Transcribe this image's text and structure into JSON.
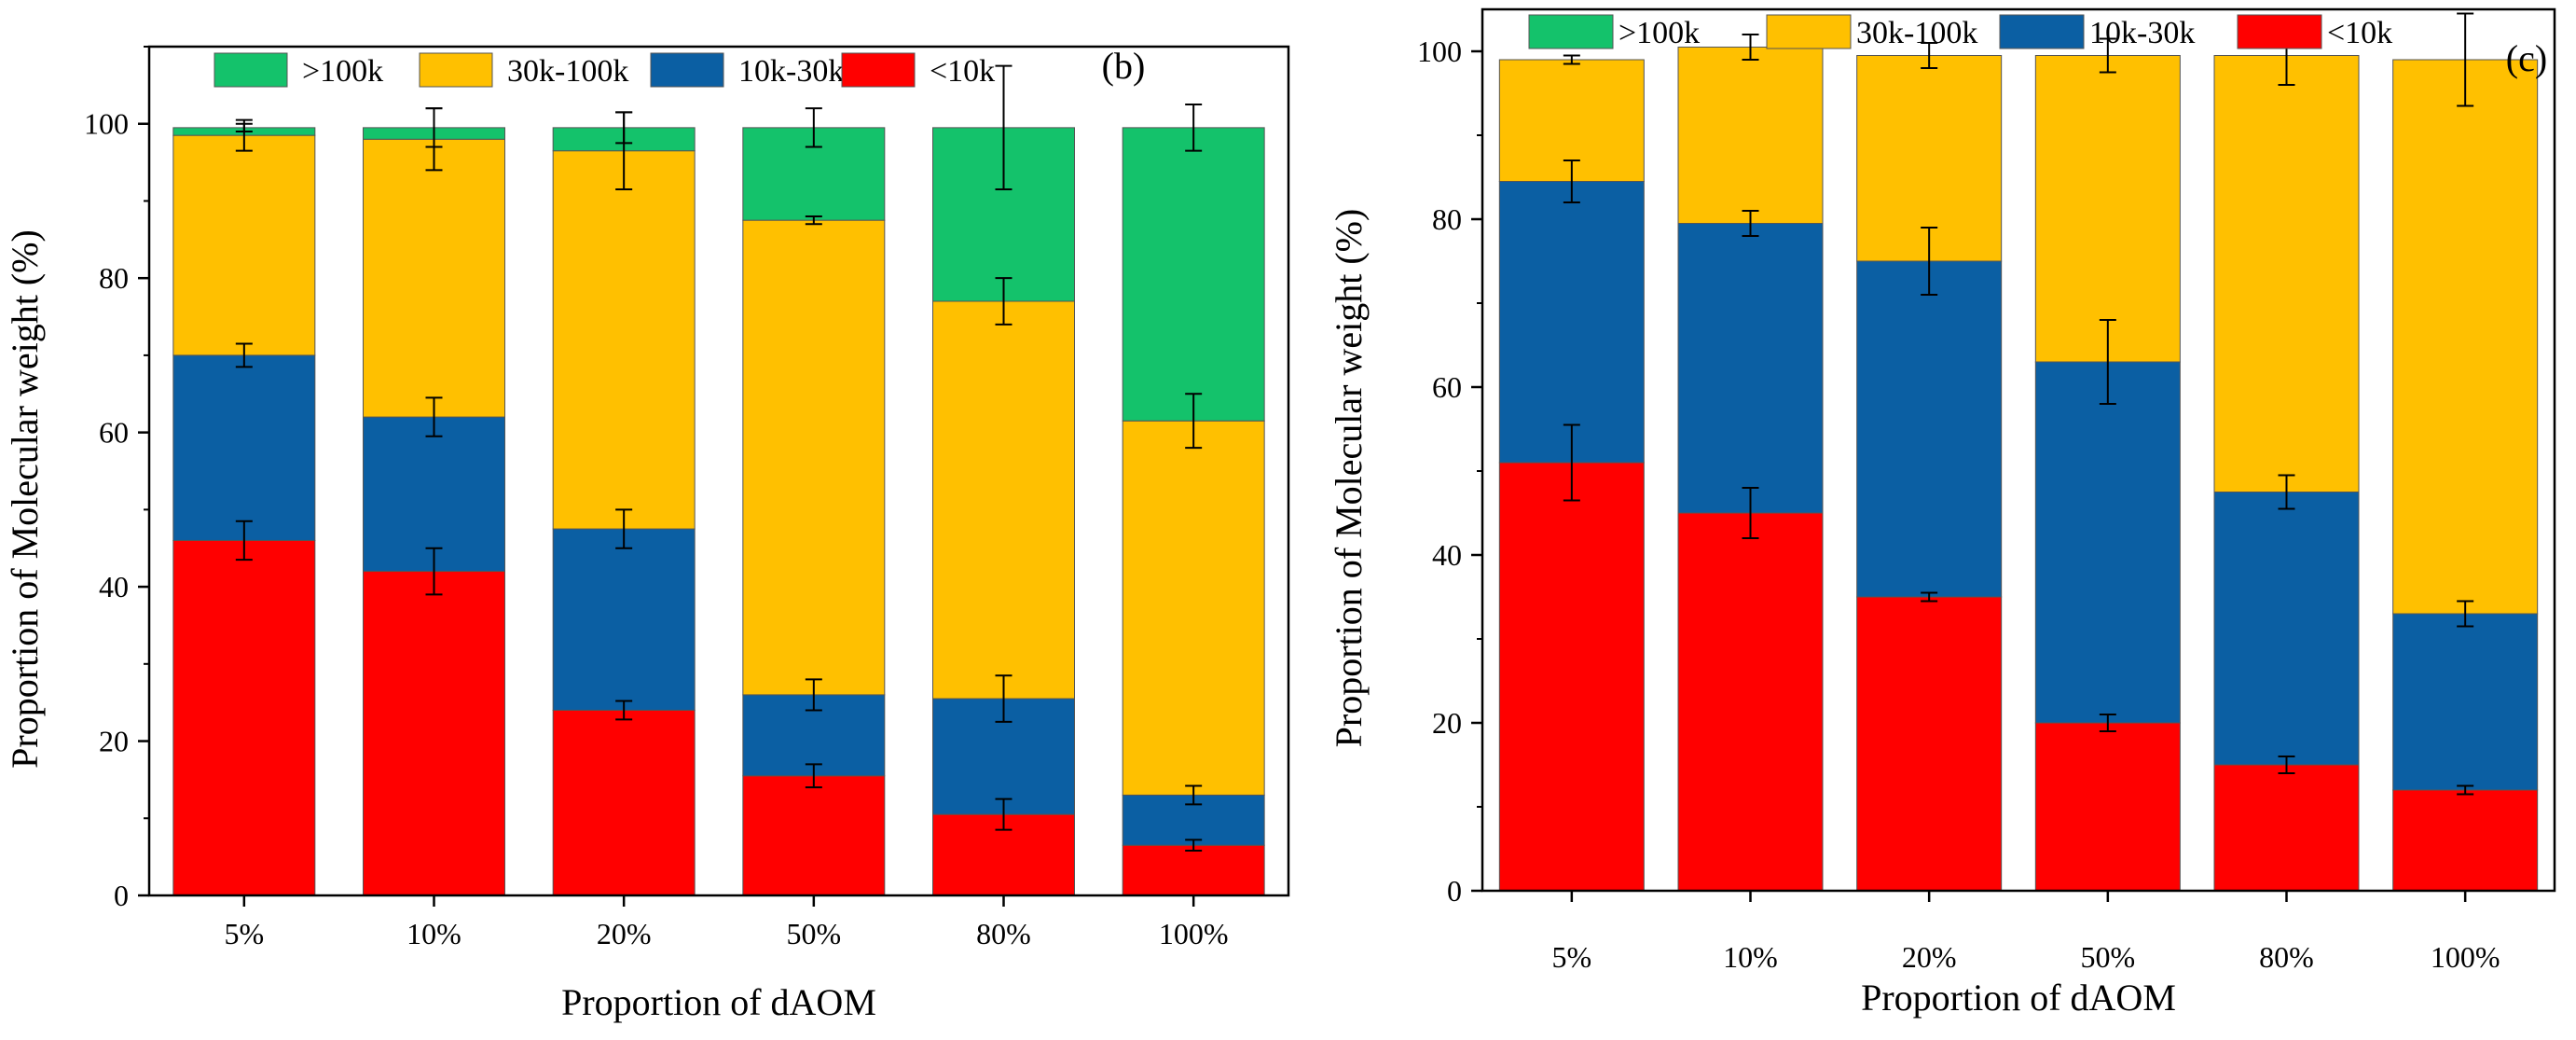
{
  "colors": {
    "gt100k": "#14c26b",
    "k30_100": "#ffc000",
    "k10_30": "#0b5fa3",
    "lt10k": "#ff0000"
  },
  "chart_data": [
    {
      "type": "bar",
      "stacked": true,
      "panel_label": "(b)",
      "xlabel": "Proportion of dAOM",
      "ylabel": "Proportion of Molecular weight (%)",
      "ylim": [
        0,
        110
      ],
      "yticks": [
        "0",
        "20",
        "40",
        "60",
        "80",
        "100"
      ],
      "grid": false,
      "legend_position": "top",
      "categories": [
        "5%",
        "10%",
        "20%",
        "50%",
        "80%",
        "100%"
      ],
      "series": [
        {
          "name": "<10k",
          "color_key": "lt10k",
          "values": [
            46,
            42,
            24,
            15.5,
            10.5,
            6.5
          ],
          "errors": [
            2.5,
            3,
            1.2,
            1.5,
            2,
            0.7
          ]
        },
        {
          "name": "10k-30k",
          "color_key": "k10_30",
          "values": [
            24,
            20,
            23.5,
            10.5,
            15,
            6.5
          ],
          "errors": [
            1.5,
            2.5,
            2.5,
            2,
            3,
            1.2
          ]
        },
        {
          "name": "30k-100k",
          "color_key": "k30_100",
          "values": [
            28.5,
            36,
            49,
            61.5,
            51.5,
            48.5
          ],
          "errors": [
            2,
            4,
            5,
            0.5,
            3,
            3.5
          ]
        },
        {
          "name": ">100k",
          "color_key": "gt100k",
          "values": [
            1,
            1.5,
            3,
            12,
            22.5,
            38
          ],
          "errors": [
            0.5,
            2.5,
            2,
            2.5,
            8,
            3
          ]
        }
      ]
    },
    {
      "type": "bar",
      "stacked": true,
      "panel_label": "(c)",
      "xlabel": "Proportion of dAOM",
      "ylabel": "Proportion of Molecular weight (%)",
      "ylim": [
        0,
        105
      ],
      "yticks": [
        "0",
        "20",
        "40",
        "60",
        "80",
        "100"
      ],
      "grid": false,
      "legend_position": "top",
      "categories": [
        "5%",
        "10%",
        "20%",
        "50%",
        "80%",
        "100%"
      ],
      "series": [
        {
          "name": "<10k",
          "color_key": "lt10k",
          "values": [
            51,
            45,
            35,
            20,
            15,
            12
          ],
          "errors": [
            4.5,
            3,
            0.5,
            1,
            1,
            0.5
          ]
        },
        {
          "name": "10k-30k",
          "color_key": "k10_30",
          "values": [
            33.5,
            34.5,
            40,
            43,
            32.5,
            21
          ],
          "errors": [
            2.5,
            1.5,
            4,
            5,
            2,
            1.5
          ]
        },
        {
          "name": "30k-100k",
          "color_key": "k30_100",
          "values": [
            14.5,
            21,
            24.5,
            36.5,
            52,
            66
          ],
          "errors": [
            0.5,
            1.5,
            1.5,
            2,
            3.5,
            5.5
          ]
        }
      ]
    }
  ]
}
